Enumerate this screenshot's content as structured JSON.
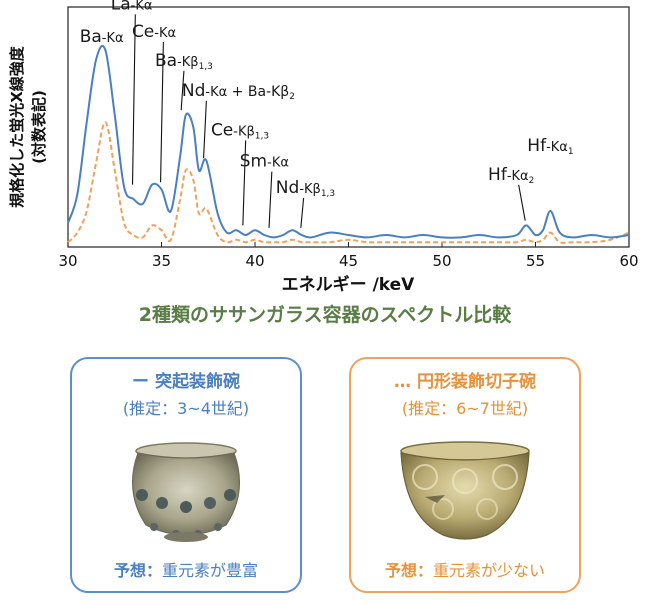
{
  "chart_data": {
    "type": "line",
    "xlabel": "エネルギー /keV",
    "ylabel": "規格化した蛍光X線強度",
    "ylabel_sub": "(対数表記)",
    "xlim": [
      30,
      60
    ],
    "ylim": [
      0,
      1
    ],
    "x_ticks": [
      "30",
      "35",
      "40",
      "45",
      "50",
      "55",
      "60"
    ],
    "grid": false,
    "series": [
      {
        "name": "突起装飾碗",
        "color": "#4a7fc0",
        "style": "solid",
        "x": [
          30.0,
          30.5,
          31.0,
          31.5,
          32.0,
          32.5,
          33.0,
          33.5,
          34.0,
          34.5,
          35.0,
          35.5,
          36.0,
          36.3,
          36.7,
          37.0,
          37.4,
          38.0,
          38.5,
          39.0,
          39.5,
          40.0,
          40.5,
          41.0,
          41.5,
          42.0,
          42.5,
          43.0,
          44.0,
          45.0,
          46.0,
          47.0,
          48.0,
          49.0,
          50.0,
          51.0,
          52.0,
          53.0,
          54.0,
          54.5,
          55.0,
          55.4,
          55.8,
          56.3,
          57.0,
          58.0,
          59.0,
          60.0
        ],
        "values": [
          0.1,
          0.22,
          0.52,
          0.78,
          0.82,
          0.55,
          0.25,
          0.2,
          0.18,
          0.26,
          0.24,
          0.15,
          0.38,
          0.55,
          0.5,
          0.32,
          0.36,
          0.14,
          0.06,
          0.07,
          0.05,
          0.07,
          0.05,
          0.04,
          0.05,
          0.07,
          0.05,
          0.04,
          0.06,
          0.05,
          0.04,
          0.05,
          0.04,
          0.05,
          0.04,
          0.04,
          0.05,
          0.04,
          0.05,
          0.09,
          0.05,
          0.07,
          0.15,
          0.06,
          0.04,
          0.05,
          0.04,
          0.05
        ]
      },
      {
        "name": "円形装飾切子碗",
        "color": "#f0a25a",
        "style": "dashed",
        "x": [
          30.0,
          30.5,
          31.0,
          31.5,
          32.0,
          32.5,
          33.0,
          33.5,
          34.0,
          34.5,
          35.0,
          35.5,
          36.0,
          36.3,
          36.7,
          37.0,
          37.4,
          38.0,
          38.5,
          39.0,
          39.5,
          40.0,
          40.5,
          41.0,
          41.5,
          42.0,
          42.5,
          43.0,
          44.0,
          45.0,
          46.0,
          47.0,
          48.0,
          49.0,
          50.0,
          51.0,
          52.0,
          53.0,
          54.0,
          54.5,
          55.0,
          55.4,
          55.8,
          56.3,
          57.0,
          58.0,
          59.0,
          60.0
        ],
        "values": [
          0.02,
          0.06,
          0.15,
          0.35,
          0.52,
          0.32,
          0.1,
          0.05,
          0.04,
          0.09,
          0.07,
          0.03,
          0.2,
          0.32,
          0.28,
          0.14,
          0.16,
          0.05,
          0.02,
          0.03,
          0.02,
          0.03,
          0.02,
          0.02,
          0.02,
          0.03,
          0.02,
          0.02,
          0.02,
          0.03,
          0.02,
          0.02,
          0.02,
          0.02,
          0.02,
          0.02,
          0.02,
          0.02,
          0.02,
          0.03,
          0.02,
          0.03,
          0.06,
          0.02,
          0.02,
          0.02,
          0.03,
          0.06
        ]
      }
    ],
    "annotations": [
      {
        "label": "Ba",
        "line": "Kα",
        "sub": "",
        "x": 31.8,
        "ly": 0.855,
        "lx": null
      },
      {
        "label": "La",
        "line": "Kα",
        "sub": "",
        "x": 33.4,
        "ly": 0.99,
        "lx": 33.6,
        "py": 0.26
      },
      {
        "label": "Ce",
        "line": "Kα",
        "sub": "",
        "x": 34.6,
        "ly": 0.875,
        "lx": 35.1,
        "py": 0.27
      },
      {
        "label": "Ba",
        "line": "Kβ",
        "sub": "1,3",
        "x": 36.2,
        "ly": 0.755,
        "lx": 36.2,
        "py": 0.57
      },
      {
        "label": "Nd",
        "line": "Kα",
        "sub": "",
        "x": 37.0,
        "ly": 0.63,
        "lx": 37.4,
        "py": 0.37
      },
      {
        "label": "Ce",
        "line": "Kβ",
        "sub": "1,3",
        "x": 39.2,
        "ly": 0.465,
        "lx": 39.5,
        "py": 0.09
      },
      {
        "label": "Sm",
        "line": "Kα",
        "sub": "",
        "x": 40.5,
        "ly": 0.335,
        "lx": 40.9,
        "py": 0.08
      },
      {
        "label": "Nd",
        "line": "Kβ",
        "sub": "1,3",
        "x": 42.7,
        "ly": 0.225,
        "lx": 42.6,
        "py": 0.08
      },
      {
        "label": "Hf",
        "line": "Kα",
        "sub": "2",
        "x": 53.7,
        "ly": 0.28,
        "lx": 54.1,
        "py": 0.11
      },
      {
        "label": "Hf",
        "line": "Kα",
        "sub": "1",
        "x": 55.8,
        "ly": 0.4,
        "lx": null
      }
    ],
    "nd_extra": "+ Ba-Kβ",
    "nd_extra_sub": "2"
  },
  "caption": "2種類のササンガラス容器のスペクトル比較",
  "cards": [
    {
      "marker": "ー",
      "title": "突起装飾碗",
      "era": "(推定：3~4世紀)",
      "pred_label": "予想：",
      "pred_text": "重元素が豊富"
    },
    {
      "marker": "…",
      "title": "円形装飾切子碗",
      "era": "(推定：6~7世紀)",
      "pred_label": "予想：",
      "pred_text": "重元素が少ない"
    }
  ]
}
